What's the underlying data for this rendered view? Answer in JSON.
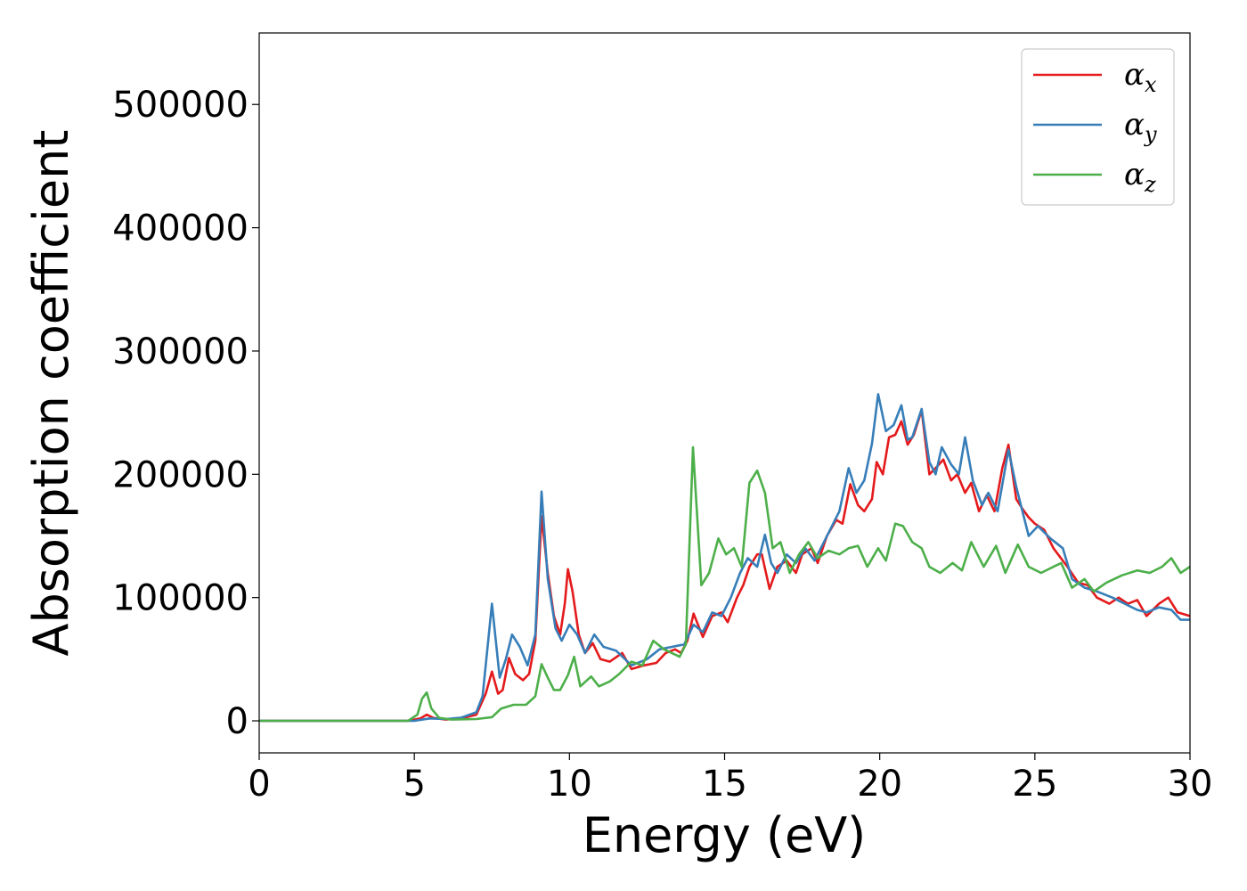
{
  "chart_data": {
    "type": "line",
    "xlabel": "Energy (eV)",
    "ylabel": "Absorption coefficient",
    "xlim": [
      0,
      30
    ],
    "ylim": [
      -26000,
      558000
    ],
    "xticks": [
      0,
      5,
      10,
      15,
      20,
      25,
      30
    ],
    "xtick_labels": [
      "0",
      "5",
      "10",
      "15",
      "20",
      "25",
      "30"
    ],
    "yticks": [
      0,
      100000,
      200000,
      300000,
      400000,
      500000
    ],
    "ytick_labels": [
      "0",
      "100000",
      "200000",
      "300000",
      "400000",
      "500000"
    ],
    "grid": false,
    "legend_position": "top-right",
    "series": [
      {
        "name": "α",
        "sub": "x",
        "color": "#e41a1c",
        "points": [
          [
            0,
            0
          ],
          [
            4.8,
            0
          ],
          [
            5.2,
            2000
          ],
          [
            5.4,
            5000
          ],
          [
            5.6,
            2500
          ],
          [
            6,
            1000
          ],
          [
            6.5,
            2000
          ],
          [
            7,
            5000
          ],
          [
            7.3,
            22000
          ],
          [
            7.5,
            40000
          ],
          [
            7.7,
            22000
          ],
          [
            7.85,
            25000
          ],
          [
            8.05,
            51000
          ],
          [
            8.25,
            38000
          ],
          [
            8.5,
            33000
          ],
          [
            8.7,
            38000
          ],
          [
            8.9,
            65000
          ],
          [
            9.1,
            166000
          ],
          [
            9.3,
            120000
          ],
          [
            9.5,
            85000
          ],
          [
            9.7,
            70000
          ],
          [
            9.85,
            95000
          ],
          [
            9.95,
            123000
          ],
          [
            10.1,
            105000
          ],
          [
            10.3,
            70000
          ],
          [
            10.5,
            55000
          ],
          [
            10.75,
            63000
          ],
          [
            11,
            50000
          ],
          [
            11.3,
            48000
          ],
          [
            11.7,
            55000
          ],
          [
            12,
            42000
          ],
          [
            12.4,
            45000
          ],
          [
            12.8,
            47000
          ],
          [
            13.1,
            55000
          ],
          [
            13.4,
            58000
          ],
          [
            13.6,
            55000
          ],
          [
            13.8,
            65000
          ],
          [
            14,
            87000
          ],
          [
            14.3,
            68000
          ],
          [
            14.6,
            85000
          ],
          [
            14.9,
            88000
          ],
          [
            15.1,
            80000
          ],
          [
            15.4,
            100000
          ],
          [
            15.6,
            110000
          ],
          [
            15.8,
            125000
          ],
          [
            16.05,
            135000
          ],
          [
            16.2,
            135000
          ],
          [
            16.45,
            107000
          ],
          [
            16.7,
            125000
          ],
          [
            17,
            130000
          ],
          [
            17.3,
            120000
          ],
          [
            17.5,
            135000
          ],
          [
            17.8,
            140000
          ],
          [
            18,
            128000
          ],
          [
            18.3,
            150000
          ],
          [
            18.6,
            163000
          ],
          [
            18.8,
            160000
          ],
          [
            19.05,
            192000
          ],
          [
            19.3,
            175000
          ],
          [
            19.5,
            170000
          ],
          [
            19.75,
            180000
          ],
          [
            19.9,
            210000
          ],
          [
            20.1,
            200000
          ],
          [
            20.3,
            230000
          ],
          [
            20.5,
            232000
          ],
          [
            20.7,
            243000
          ],
          [
            20.9,
            224000
          ],
          [
            21.1,
            232000
          ],
          [
            21.35,
            252000
          ],
          [
            21.6,
            200000
          ],
          [
            21.8,
            205000
          ],
          [
            22.05,
            212000
          ],
          [
            22.3,
            195000
          ],
          [
            22.5,
            200000
          ],
          [
            22.75,
            185000
          ],
          [
            22.95,
            193000
          ],
          [
            23.2,
            170000
          ],
          [
            23.45,
            183000
          ],
          [
            23.7,
            170000
          ],
          [
            23.95,
            205000
          ],
          [
            24.15,
            224000
          ],
          [
            24.4,
            180000
          ],
          [
            24.6,
            172000
          ],
          [
            24.8,
            165000
          ],
          [
            25,
            160000
          ],
          [
            25.3,
            155000
          ],
          [
            25.6,
            140000
          ],
          [
            26.05,
            125000
          ],
          [
            26.4,
            112000
          ],
          [
            26.7,
            110000
          ],
          [
            27,
            100000
          ],
          [
            27.4,
            95000
          ],
          [
            27.7,
            100000
          ],
          [
            28,
            95000
          ],
          [
            28.3,
            98000
          ],
          [
            28.6,
            85000
          ],
          [
            29,
            95000
          ],
          [
            29.3,
            100000
          ],
          [
            29.6,
            88000
          ],
          [
            30,
            85000
          ]
        ]
      },
      {
        "name": "α",
        "sub": "y",
        "color": "#377eb8",
        "points": [
          [
            0,
            0
          ],
          [
            5,
            0
          ],
          [
            5.5,
            2000
          ],
          [
            6,
            1500
          ],
          [
            6.5,
            2500
          ],
          [
            7,
            7000
          ],
          [
            7.2,
            20000
          ],
          [
            7.5,
            95000
          ],
          [
            7.75,
            35000
          ],
          [
            7.95,
            50000
          ],
          [
            8.15,
            70000
          ],
          [
            8.4,
            60000
          ],
          [
            8.65,
            45000
          ],
          [
            8.9,
            70000
          ],
          [
            9.1,
            186000
          ],
          [
            9.3,
            115000
          ],
          [
            9.55,
            75000
          ],
          [
            9.75,
            65000
          ],
          [
            10,
            78000
          ],
          [
            10.25,
            70000
          ],
          [
            10.5,
            55000
          ],
          [
            10.8,
            70000
          ],
          [
            11.1,
            60000
          ],
          [
            11.5,
            57000
          ],
          [
            12,
            45000
          ],
          [
            12.5,
            50000
          ],
          [
            12.9,
            58000
          ],
          [
            13.3,
            60000
          ],
          [
            13.7,
            62000
          ],
          [
            14,
            78000
          ],
          [
            14.3,
            72000
          ],
          [
            14.6,
            88000
          ],
          [
            14.9,
            85000
          ],
          [
            15.2,
            100000
          ],
          [
            15.5,
            120000
          ],
          [
            15.75,
            132000
          ],
          [
            16.05,
            125000
          ],
          [
            16.3,
            151000
          ],
          [
            16.5,
            128000
          ],
          [
            16.7,
            120000
          ],
          [
            17,
            135000
          ],
          [
            17.3,
            128000
          ],
          [
            17.6,
            140000
          ],
          [
            17.9,
            130000
          ],
          [
            18.2,
            145000
          ],
          [
            18.5,
            160000
          ],
          [
            18.7,
            170000
          ],
          [
            19,
            205000
          ],
          [
            19.25,
            185000
          ],
          [
            19.5,
            195000
          ],
          [
            19.75,
            225000
          ],
          [
            19.95,
            265000
          ],
          [
            20.2,
            235000
          ],
          [
            20.45,
            240000
          ],
          [
            20.7,
            256000
          ],
          [
            20.9,
            228000
          ],
          [
            21.05,
            230000
          ],
          [
            21.35,
            253000
          ],
          [
            21.6,
            210000
          ],
          [
            21.8,
            200000
          ],
          [
            22,
            222000
          ],
          [
            22.3,
            208000
          ],
          [
            22.55,
            200000
          ],
          [
            22.75,
            230000
          ],
          [
            23,
            195000
          ],
          [
            23.3,
            175000
          ],
          [
            23.5,
            185000
          ],
          [
            23.8,
            170000
          ],
          [
            24.15,
            220000
          ],
          [
            24.4,
            190000
          ],
          [
            24.8,
            150000
          ],
          [
            25.1,
            158000
          ],
          [
            25.5,
            148000
          ],
          [
            25.9,
            140000
          ],
          [
            26.2,
            115000
          ],
          [
            26.6,
            108000
          ],
          [
            27,
            105000
          ],
          [
            27.5,
            100000
          ],
          [
            27.9,
            95000
          ],
          [
            28.3,
            90000
          ],
          [
            28.6,
            88000
          ],
          [
            29,
            92000
          ],
          [
            29.4,
            90000
          ],
          [
            29.7,
            82000
          ],
          [
            30,
            82000
          ]
        ]
      },
      {
        "name": "α",
        "sub": "z",
        "color": "#4daf4a",
        "points": [
          [
            0,
            0
          ],
          [
            4.8,
            0
          ],
          [
            5.1,
            5000
          ],
          [
            5.25,
            18000
          ],
          [
            5.4,
            23000
          ],
          [
            5.55,
            10000
          ],
          [
            5.8,
            2500
          ],
          [
            6.2,
            1000
          ],
          [
            7,
            1500
          ],
          [
            7.5,
            3000
          ],
          [
            7.8,
            10000
          ],
          [
            8.2,
            13000
          ],
          [
            8.6,
            13000
          ],
          [
            8.9,
            20000
          ],
          [
            9.1,
            46000
          ],
          [
            9.3,
            35000
          ],
          [
            9.5,
            25000
          ],
          [
            9.7,
            25000
          ],
          [
            9.95,
            37000
          ],
          [
            10.15,
            52000
          ],
          [
            10.35,
            28000
          ],
          [
            10.7,
            36000
          ],
          [
            10.95,
            28000
          ],
          [
            11.3,
            32000
          ],
          [
            11.6,
            38000
          ],
          [
            12,
            48000
          ],
          [
            12.35,
            45000
          ],
          [
            12.7,
            65000
          ],
          [
            13.05,
            58000
          ],
          [
            13.3,
            55000
          ],
          [
            13.55,
            52000
          ],
          [
            13.75,
            62000
          ],
          [
            13.98,
            222000
          ],
          [
            14.25,
            110000
          ],
          [
            14.5,
            120000
          ],
          [
            14.8,
            148000
          ],
          [
            15.05,
            135000
          ],
          [
            15.3,
            140000
          ],
          [
            15.55,
            125000
          ],
          [
            15.8,
            193000
          ],
          [
            16.05,
            203000
          ],
          [
            16.3,
            185000
          ],
          [
            16.55,
            140000
          ],
          [
            16.8,
            145000
          ],
          [
            17.1,
            120000
          ],
          [
            17.4,
            135000
          ],
          [
            17.7,
            145000
          ],
          [
            18,
            132000
          ],
          [
            18.35,
            138000
          ],
          [
            18.7,
            135000
          ],
          [
            19,
            140000
          ],
          [
            19.3,
            142000
          ],
          [
            19.6,
            125000
          ],
          [
            19.95,
            140000
          ],
          [
            20.2,
            130000
          ],
          [
            20.5,
            160000
          ],
          [
            20.75,
            158000
          ],
          [
            21.05,
            145000
          ],
          [
            21.35,
            140000
          ],
          [
            21.6,
            125000
          ],
          [
            21.95,
            120000
          ],
          [
            22.35,
            128000
          ],
          [
            22.65,
            122000
          ],
          [
            22.95,
            145000
          ],
          [
            23.35,
            125000
          ],
          [
            23.75,
            142000
          ],
          [
            24.05,
            120000
          ],
          [
            24.45,
            143000
          ],
          [
            24.8,
            125000
          ],
          [
            25.2,
            120000
          ],
          [
            25.6,
            125000
          ],
          [
            25.85,
            128000
          ],
          [
            26.2,
            108000
          ],
          [
            26.6,
            115000
          ],
          [
            26.9,
            105000
          ],
          [
            27.3,
            112000
          ],
          [
            27.8,
            118000
          ],
          [
            28.3,
            122000
          ],
          [
            28.7,
            120000
          ],
          [
            29.1,
            125000
          ],
          [
            29.4,
            132000
          ],
          [
            29.7,
            120000
          ],
          [
            30,
            125000
          ]
        ]
      }
    ]
  }
}
